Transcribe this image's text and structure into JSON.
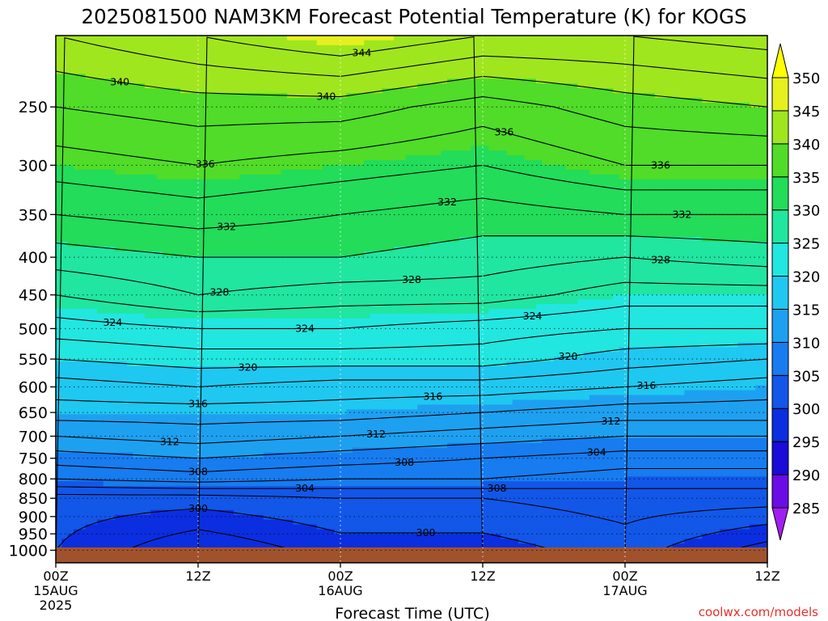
{
  "chart_data": {
    "type": "heatmap",
    "title": "2025081500 NAM3KM Forecast Potential Temperature (K) for KOGS",
    "xlabel": "Forecast Time (UTC)",
    "ylabel": "",
    "x_ticks": [
      {
        "hour": 0,
        "label": "00Z",
        "date": "15AUG",
        "year": "2025"
      },
      {
        "hour": 12,
        "label": "12Z",
        "date": "",
        "year": ""
      },
      {
        "hour": 24,
        "label": "00Z",
        "date": "16AUG",
        "year": ""
      },
      {
        "hour": 36,
        "label": "12Z",
        "date": "",
        "year": ""
      },
      {
        "hour": 48,
        "label": "00Z",
        "date": "17AUG",
        "year": ""
      },
      {
        "hour": 60,
        "label": "12Z",
        "date": "",
        "year": ""
      }
    ],
    "xlim": [
      0,
      60
    ],
    "ylim": [
      1040,
      200
    ],
    "y_ticks": [
      250,
      300,
      350,
      400,
      450,
      500,
      550,
      600,
      650,
      700,
      750,
      800,
      850,
      900,
      950,
      1000
    ],
    "y_scale": "log",
    "colorbar": {
      "levels": [
        285,
        290,
        295,
        300,
        305,
        310,
        315,
        320,
        325,
        330,
        335,
        340,
        345,
        350
      ],
      "colors": [
        "#a020f0",
        "#6a0ce6",
        "#1a0bd6",
        "#0b2ee0",
        "#1257e8",
        "#177cf0",
        "#1ea0f0",
        "#1fc8f0",
        "#22e6e0",
        "#20e6a0",
        "#22dc5a",
        "#50dc28",
        "#a0e61e",
        "#e6f01e",
        "#ffff00"
      ],
      "extend": "both"
    },
    "contour_labels": [
      "340",
      "344",
      "336",
      "340",
      "336",
      "332",
      "336",
      "332",
      "332",
      "328",
      "328",
      "328",
      "324",
      "324",
      "324",
      "320",
      "320",
      "316",
      "316",
      "316",
      "312",
      "312",
      "312",
      "308",
      "304",
      "308",
      "304",
      "308",
      "300",
      "300"
    ],
    "profiles": [
      {
        "hour": 0,
        "isentropes": {
          "1000": 300,
          "850": 301,
          "800": 306,
          "750": 309,
          "700": 312,
          "650": 315,
          "600": 317,
          "550": 320,
          "500": 323,
          "450": 326,
          "400": 329,
          "350": 332,
          "300": 335,
          "250": 338,
          "200": 342
        }
      },
      {
        "hour": 12,
        "isentropes": {
          "1000": 296,
          "850": 301,
          "800": 307,
          "750": 310,
          "700": 313,
          "650": 315,
          "600": 318,
          "550": 321,
          "500": 324,
          "450": 328,
          "400": 330,
          "350": 333,
          "300": 336,
          "250": 339,
          "200": 344
        }
      },
      {
        "hour": 24,
        "isentropes": {
          "1000": 299,
          "850": 302,
          "800": 306,
          "750": 309,
          "700": 312,
          "650": 315,
          "600": 317,
          "550": 321,
          "500": 324,
          "450": 327,
          "400": 330,
          "350": 332,
          "300": 335,
          "250": 339,
          "200": 346
        }
      },
      {
        "hour": 36,
        "isentropes": {
          "1000": 299,
          "850": 302,
          "800": 306,
          "750": 308,
          "700": 311,
          "650": 314,
          "600": 317,
          "550": 321,
          "500": 323,
          "450": 327,
          "400": 329,
          "350": 331,
          "300": 334,
          "250": 337,
          "200": 344
        }
      },
      {
        "hour": 48,
        "isentropes": {
          "1000": 301,
          "850": 303,
          "800": 305,
          "750": 307,
          "700": 310,
          "650": 313,
          "600": 316,
          "550": 319,
          "500": 322,
          "450": 325,
          "400": 328,
          "350": 332,
          "300": 336,
          "250": 339,
          "200": 344
        }
      },
      {
        "hour": 60,
        "isentropes": {
          "1000": 297,
          "850": 303,
          "800": 305,
          "750": 307,
          "700": 310,
          "650": 313,
          "600": 315,
          "550": 318,
          "500": 322,
          "450": 325,
          "400": 329,
          "350": 332,
          "300": 336,
          "250": 340,
          "200": 345
        }
      }
    ],
    "grid": true,
    "ground_color": "#a0522d"
  },
  "credit": "coolwx.com/models"
}
